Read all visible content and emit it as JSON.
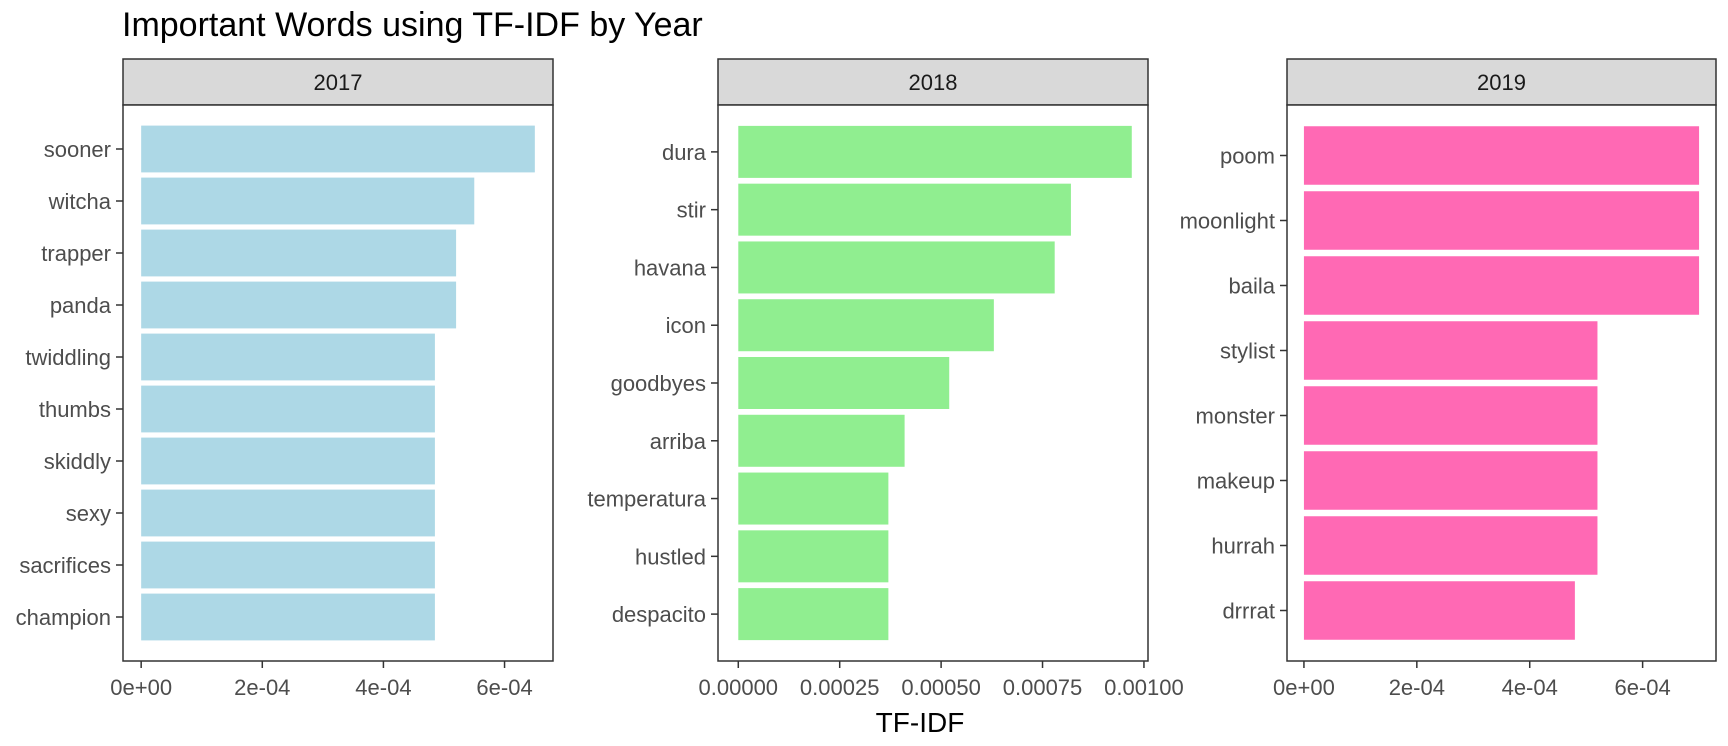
{
  "chart_data": {
    "type": "bar",
    "title": "Important Words using TF-IDF by Year",
    "xlabel": "TF-IDF",
    "ylabel": "",
    "orientation": "horizontal",
    "facets": [
      {
        "label": "2017",
        "color": "#add8e6",
        "xlim": [
          -3e-05,
          0.00068
        ],
        "xticks": [
          {
            "value": 0,
            "label": "0e+00"
          },
          {
            "value": 0.0002,
            "label": "2e-04"
          },
          {
            "value": 0.0004,
            "label": "4e-04"
          },
          {
            "value": 0.0006,
            "label": "6e-04"
          }
        ],
        "categories": [
          "sooner",
          "witcha",
          "trapper",
          "panda",
          "twiddling",
          "thumbs",
          "skiddly",
          "sexy",
          "sacrifices",
          "champion"
        ],
        "values": [
          0.00065,
          0.00055,
          0.00052,
          0.00052,
          0.000485,
          0.000485,
          0.000485,
          0.000485,
          0.000485,
          0.000485
        ]
      },
      {
        "label": "2018",
        "color": "#90ee90",
        "xlim": [
          -5e-05,
          0.00101
        ],
        "xticks": [
          {
            "value": 0,
            "label": "0.00000"
          },
          {
            "value": 0.00025,
            "label": "0.00025"
          },
          {
            "value": 0.0005,
            "label": "0.00050"
          },
          {
            "value": 0.00075,
            "label": "0.00075"
          },
          {
            "value": 0.001,
            "label": "0.00100"
          }
        ],
        "categories": [
          "dura",
          "stir",
          "havana",
          "icon",
          "goodbyes",
          "arriba",
          "temperatura",
          "hustled",
          "despacito"
        ],
        "values": [
          0.00097,
          0.00082,
          0.00078,
          0.00063,
          0.00052,
          0.00041,
          0.00037,
          0.00037,
          0.00037
        ]
      },
      {
        "label": "2019",
        "color": "#ff69b4",
        "xlim": [
          -3e-05,
          0.00073
        ],
        "xticks": [
          {
            "value": 0,
            "label": "0e+00"
          },
          {
            "value": 0.0002,
            "label": "2e-04"
          },
          {
            "value": 0.0004,
            "label": "4e-04"
          },
          {
            "value": 0.0006,
            "label": "6e-04"
          }
        ],
        "categories": [
          "poom",
          "moonlight",
          "baila",
          "stylist",
          "monster",
          "makeup",
          "hurrah",
          "drrrat"
        ],
        "values": [
          0.0007,
          0.0007,
          0.0007,
          0.00052,
          0.00052,
          0.00052,
          0.00052,
          0.00048
        ]
      }
    ],
    "grid": false,
    "legend": "none"
  }
}
